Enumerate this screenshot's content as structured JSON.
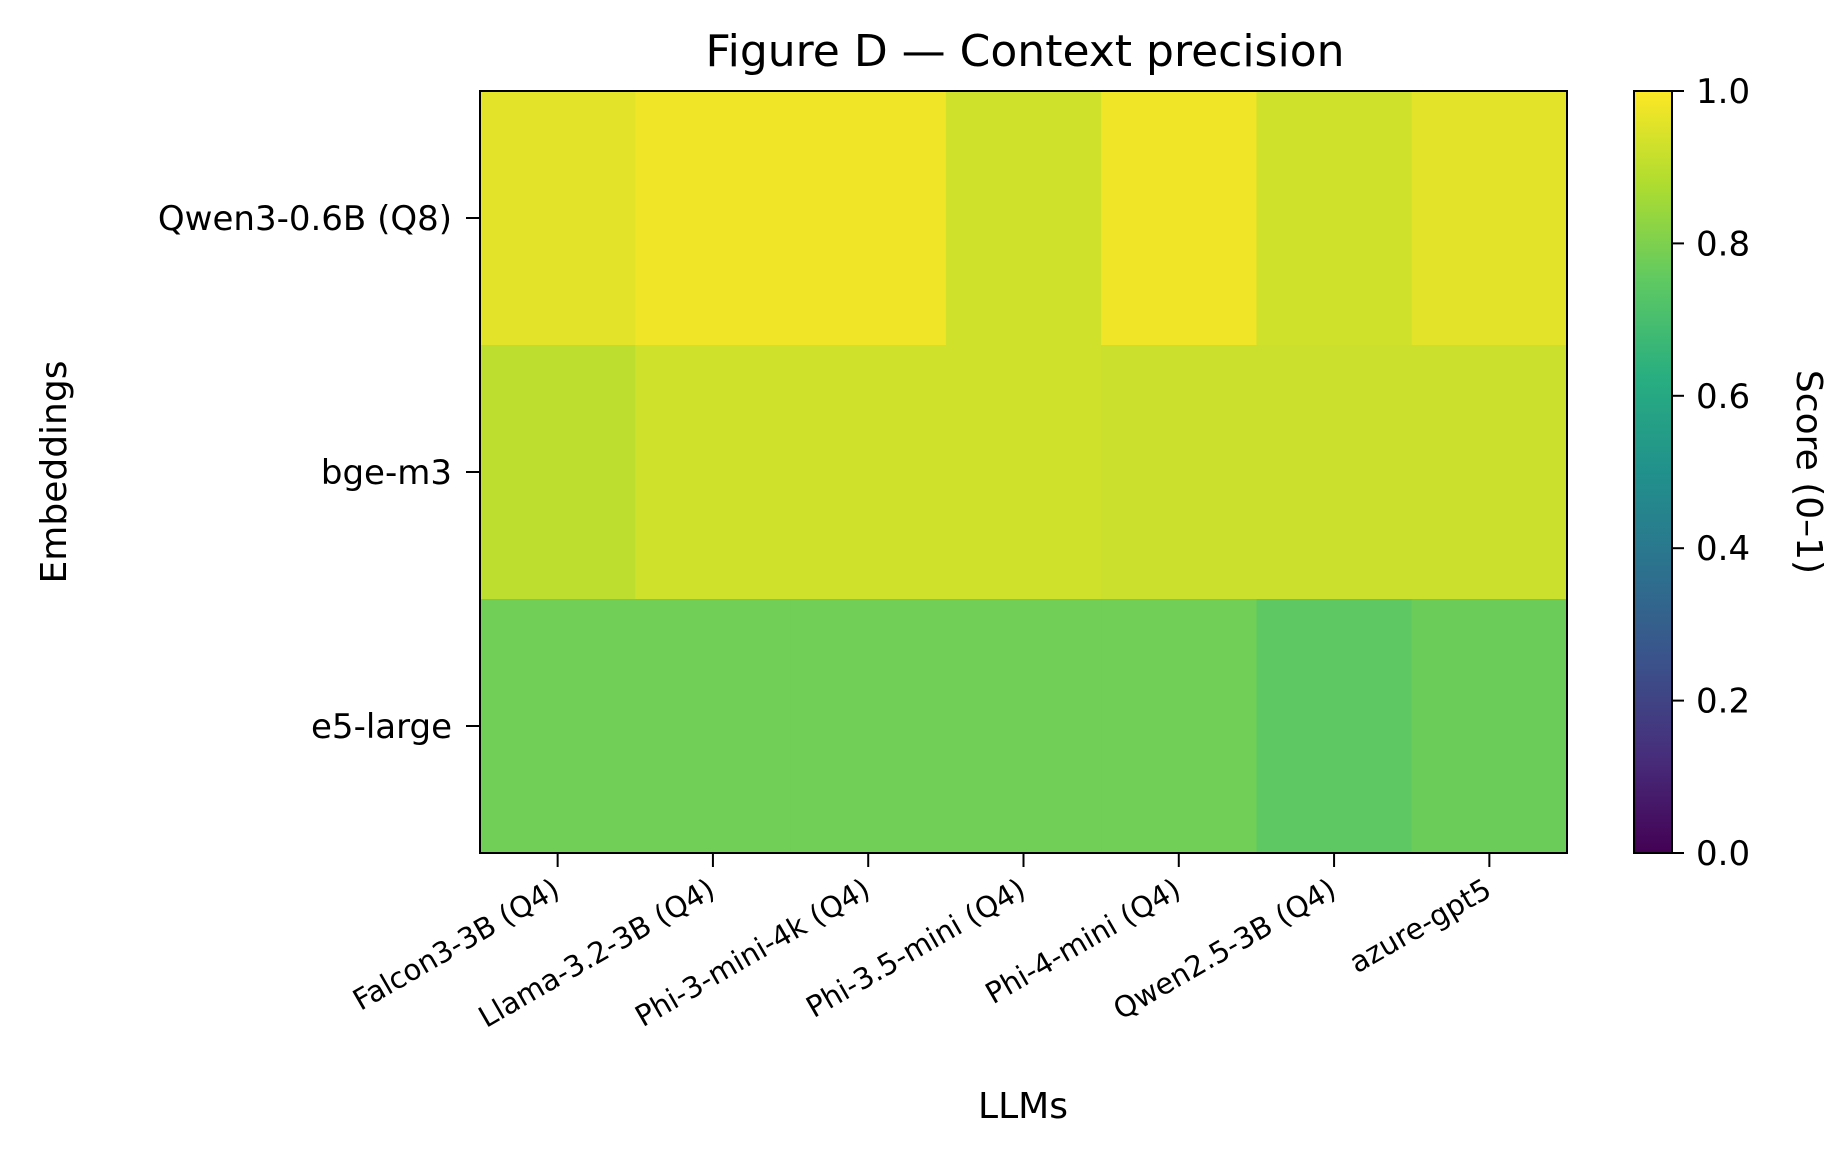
{
  "chart_data": {
    "type": "heatmap",
    "title": "Figure D — Context precision",
    "xlabel": "LLMs",
    "ylabel": "Embeddings",
    "x_categories": [
      "Falcon3-3B (Q4)",
      "Llama-3.2-3B (Q4)",
      "Phi-3-mini-4k (Q4)",
      "Phi-3.5-mini (Q4)",
      "Phi-4-mini (Q4)",
      "Qwen2.5-3B (Q4)",
      "azure-gpt5"
    ],
    "y_categories": [
      "Qwen3-0.6B (Q8)",
      "bge-m3",
      "e5-large"
    ],
    "values": [
      [
        0.96,
        0.98,
        0.98,
        0.93,
        0.98,
        0.93,
        0.96
      ],
      [
        0.9,
        0.93,
        0.93,
        0.93,
        0.92,
        0.92,
        0.92
      ],
      [
        0.78,
        0.78,
        0.78,
        0.78,
        0.78,
        0.75,
        0.77
      ]
    ],
    "colorbar": {
      "label": "Score (0–1)",
      "range": [
        0,
        1
      ],
      "ticks": [
        "0.0",
        "0.2",
        "0.4",
        "0.6",
        "0.8",
        "1.0"
      ],
      "colormap": "viridis"
    },
    "grid": false
  }
}
